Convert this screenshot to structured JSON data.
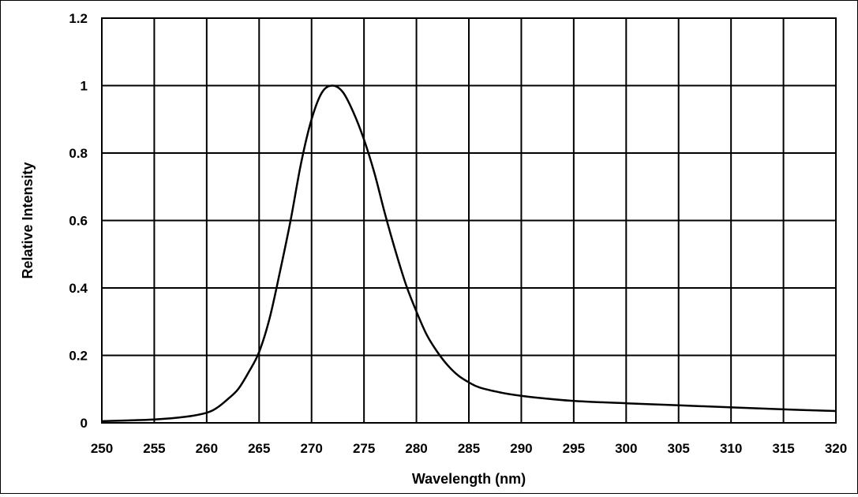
{
  "chart_data": {
    "type": "line",
    "title": "",
    "xlabel": "Wavelength (nm)",
    "ylabel": "Relative Intensity",
    "xlim": [
      250,
      320
    ],
    "ylim": [
      0,
      1.2
    ],
    "x_ticks": [
      "250",
      "255",
      "260",
      "265",
      "270",
      "275",
      "280",
      "285",
      "290",
      "295",
      "300",
      "305",
      "310",
      "315",
      "320"
    ],
    "y_ticks": [
      "0",
      "0.2",
      "0.4",
      "0.6",
      "0.8",
      "1",
      "1.2"
    ],
    "grid": true,
    "legend": "none",
    "series": [
      {
        "x": [
          250,
          255,
          258,
          260,
          261,
          262,
          263,
          264,
          265,
          266,
          267,
          268,
          269,
          270,
          271,
          272,
          273,
          274,
          275,
          276,
          277,
          278,
          279,
          280,
          281,
          282,
          283,
          284,
          285,
          286,
          288,
          290,
          292,
          295,
          300,
          305,
          310,
          315,
          320
        ],
        "y": [
          0.005,
          0.01,
          0.018,
          0.03,
          0.045,
          0.07,
          0.1,
          0.15,
          0.21,
          0.31,
          0.45,
          0.6,
          0.77,
          0.9,
          0.98,
          1.0,
          0.98,
          0.92,
          0.84,
          0.74,
          0.62,
          0.51,
          0.41,
          0.33,
          0.26,
          0.21,
          0.17,
          0.14,
          0.12,
          0.105,
          0.09,
          0.08,
          0.073,
          0.065,
          0.058,
          0.052,
          0.046,
          0.04,
          0.035
        ]
      }
    ]
  }
}
